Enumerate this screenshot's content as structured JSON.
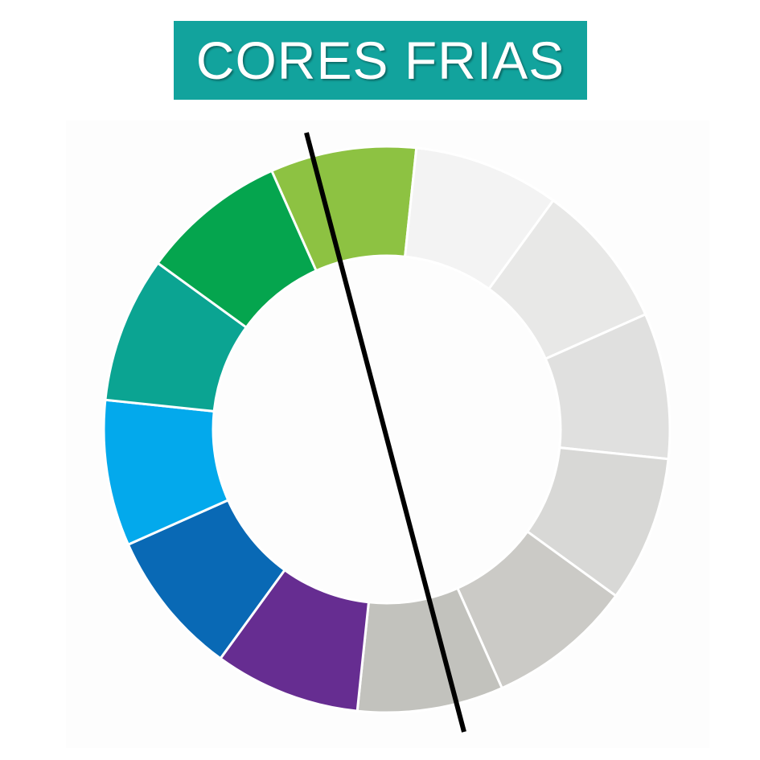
{
  "title": "CORES FRIAS",
  "colors": {
    "title_background": "#12a39d",
    "title_text": "#ffffff",
    "divider_line": "#000000"
  },
  "wheel": {
    "segments": [
      {
        "name": "yellow-green",
        "color": "#8dc242"
      },
      {
        "name": "light-gray-1",
        "color": "#f3f3f3"
      },
      {
        "name": "light-gray-2",
        "color": "#e8e8e7"
      },
      {
        "name": "light-gray-3",
        "color": "#e0e0df"
      },
      {
        "name": "light-gray-4",
        "color": "#d8d8d6"
      },
      {
        "name": "gray-5",
        "color": "#cbcac6"
      },
      {
        "name": "gray-6",
        "color": "#c2c2bd"
      },
      {
        "name": "purple",
        "color": "#662d91"
      },
      {
        "name": "dark-blue",
        "color": "#0969b5"
      },
      {
        "name": "sky-blue",
        "color": "#03a9ec"
      },
      {
        "name": "teal",
        "color": "#0ba492"
      },
      {
        "name": "green",
        "color": "#05a54e"
      }
    ]
  }
}
